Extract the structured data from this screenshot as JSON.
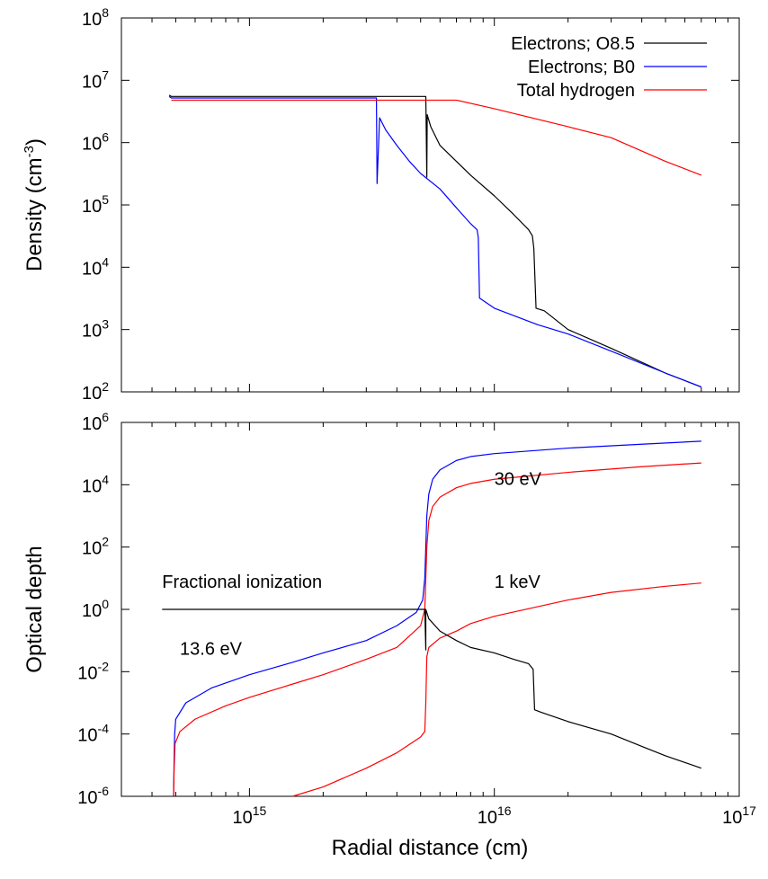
{
  "chart_data": [
    {
      "type": "line",
      "xlabel": "",
      "ylabel": "Density (cm",
      "ylabel_sup": "-3",
      "ylabel_suffix": ")",
      "xscale": "log",
      "yscale": "log",
      "xlim": [
        300000000000000.0,
        1e+17
      ],
      "ylim": [
        100,
        100000000
      ],
      "yticks": [
        {
          "exp": 2,
          "label": "10",
          "sup": "2"
        },
        {
          "exp": 3,
          "label": "10",
          "sup": "3"
        },
        {
          "exp": 4,
          "label": "10",
          "sup": "4"
        },
        {
          "exp": 5,
          "label": "10",
          "sup": "5"
        },
        {
          "exp": 6,
          "label": "10",
          "sup": "6"
        },
        {
          "exp": 7,
          "label": "10",
          "sup": "7"
        },
        {
          "exp": 8,
          "label": "10",
          "sup": "8"
        }
      ],
      "legend_position": "top-right",
      "series": [
        {
          "name": "Electrons; O8.5",
          "color": "#000000",
          "points": [
            [
              470000000000000.0,
              5800000.0
            ],
            [
              480000000000000.0,
              5500000.0
            ],
            [
              1000000000000000.0,
              5500000.0
            ],
            [
              3000000000000000.0,
              5500000.0
            ],
            [
              5250000000000000.0,
              5500000.0
            ],
            [
              5300000000000000.0,
              280000.0
            ],
            [
              5320000000000000.0,
              2800000.0
            ],
            [
              5500000000000000.0,
              1800000.0
            ],
            [
              6000000000000000.0,
              900000.0
            ],
            [
              7000000000000000.0,
              500000.0
            ],
            [
              8000000000000000.0,
              300000.0
            ],
            [
              1e+16,
              140000.0
            ],
            [
              1.2e+16,
              70000.0
            ],
            [
              1.38e+16,
              40000.0
            ],
            [
              1.43e+16,
              32000.0
            ],
            [
              1.45e+16,
              20000.0
            ],
            [
              1.48e+16,
              2200.0
            ],
            [
              1.6e+16,
              2000.0
            ],
            [
              2e+16,
              1000.0
            ],
            [
              3e+16,
              500
            ],
            [
              5e+16,
              200
            ],
            [
              7e+16,
              120
            ]
          ]
        },
        {
          "name": "Electrons; B0",
          "color": "#0000ff",
          "points": [
            [
              470000000000000.0,
              5500000.0
            ],
            [
              480000000000000.0,
              5200000.0
            ],
            [
              1000000000000000.0,
              5200000.0
            ],
            [
              2000000000000000.0,
              5200000.0
            ],
            [
              3300000000000000.0,
              5200000.0
            ],
            [
              3320000000000000.0,
              220000.0
            ],
            [
              3400000000000000.0,
              2500000.0
            ],
            [
              3600000000000000.0,
              1600000.0
            ],
            [
              4000000000000000.0,
              900000.0
            ],
            [
              4500000000000000.0,
              500000.0
            ],
            [
              5000000000000000.0,
              320000.0
            ],
            [
              6000000000000000.0,
              180000.0
            ],
            [
              7000000000000000.0,
              90000.0
            ],
            [
              8000000000000000.0,
              50000.0
            ],
            [
              8500000000000000.0,
              40000.0
            ],
            [
              8600000000000000.0,
              30000.0
            ],
            [
              8700000000000000.0,
              3200.0
            ],
            [
              1e+16,
              2200.0
            ],
            [
              1.5e+16,
              1200.0
            ],
            [
              2e+16,
              850
            ],
            [
              3e+16,
              450
            ],
            [
              5e+16,
              200
            ],
            [
              7e+16,
              120
            ]
          ]
        },
        {
          "name": "Total hydrogen",
          "color": "#ff0000",
          "points": [
            [
              480000000000000.0,
              4800000.0
            ],
            [
              1000000000000000.0,
              4800000.0
            ],
            [
              3000000000000000.0,
              4800000.0
            ],
            [
              5000000000000000.0,
              4800000.0
            ],
            [
              7000000000000000.0,
              4800000.0
            ],
            [
              1e+16,
              3500000.0
            ],
            [
              2e+16,
              1800000.0
            ],
            [
              3e+16,
              1200000.0
            ],
            [
              5e+16,
              500000.0
            ],
            [
              7e+16,
              300000.0
            ]
          ]
        }
      ]
    },
    {
      "type": "line",
      "xlabel": "Radial distance (cm)",
      "ylabel": "Optical depth",
      "xscale": "log",
      "yscale": "log",
      "xlim": [
        300000000000000.0,
        1e+17
      ],
      "ylim": [
        1e-06,
        1000000
      ],
      "xticks": [
        {
          "exp": 15,
          "label": "10",
          "sup": "15"
        },
        {
          "exp": 16,
          "label": "10",
          "sup": "16"
        },
        {
          "exp": 17,
          "label": "10",
          "sup": "17"
        }
      ],
      "yticks": [
        {
          "exp": -6,
          "label": "10",
          "sup": "-6"
        },
        {
          "exp": -4,
          "label": "10",
          "sup": "-4"
        },
        {
          "exp": -2,
          "label": "10",
          "sup": "-2"
        },
        {
          "exp": 0,
          "label": "10",
          "sup": "0"
        },
        {
          "exp": 2,
          "label": "10",
          "sup": "2"
        },
        {
          "exp": 4,
          "label": "10",
          "sup": "4"
        },
        {
          "exp": 6,
          "label": "10",
          "sup": "6"
        }
      ],
      "annotations": [
        {
          "text": "30 eV",
          "x": 1e+16,
          "y": 10000
        },
        {
          "text": "1 keV",
          "x": 1e+16,
          "y": 5
        },
        {
          "text": "Fractional ionization",
          "x": 440000000000000.0,
          "y": 5
        },
        {
          "text": "13.6 eV",
          "x": 520000000000000.0,
          "y": 0.035
        }
      ],
      "series": [
        {
          "color": "#0000ff",
          "points": [
            [
              490000000000000.0,
              1e-06
            ],
            [
              492000000000000.0,
              1e-05
            ],
            [
              495000000000000.0,
              0.0001
            ],
            [
              500000000000000.0,
              0.0003
            ],
            [
              550000000000000.0,
              0.001
            ],
            [
              700000000000000.0,
              0.003
            ],
            [
              1000000000000000.0,
              0.008
            ],
            [
              1500000000000000.0,
              0.02
            ],
            [
              2000000000000000.0,
              0.04
            ],
            [
              3000000000000000.0,
              0.1
            ],
            [
              4000000000000000.0,
              0.3
            ],
            [
              4800000000000000.0,
              0.8
            ],
            [
              5100000000000000.0,
              2
            ],
            [
              5200000000000000.0,
              10
            ],
            [
              5250000000000000.0,
              100
            ],
            [
              5300000000000000.0,
              1000
            ],
            [
              5400000000000000.0,
              5000
            ],
            [
              5600000000000000.0,
              15000
            ],
            [
              6000000000000000.0,
              30000
            ],
            [
              7000000000000000.0,
              60000
            ],
            [
              8000000000000000.0,
              80000
            ],
            [
              1e+16,
              100000
            ],
            [
              2e+16,
              150000
            ],
            [
              4e+16,
              200000
            ],
            [
              7e+16,
              250000
            ]
          ]
        },
        {
          "color": "#ff0000",
          "points": [
            [
              490000000000000.0,
              1e-06
            ],
            [
              493000000000000.0,
              1e-05
            ],
            [
              497000000000000.0,
              5e-05
            ],
            [
              520000000000000.0,
              0.00012
            ],
            [
              600000000000000.0,
              0.0003
            ],
            [
              800000000000000.0,
              0.0008
            ],
            [
              1000000000000000.0,
              0.0015
            ],
            [
              1500000000000000.0,
              0.004
            ],
            [
              2000000000000000.0,
              0.008
            ],
            [
              3000000000000000.0,
              0.025
            ],
            [
              4000000000000000.0,
              0.06
            ],
            [
              5000000000000000.0,
              0.3
            ],
            [
              5200000000000000.0,
              1
            ],
            [
              5250000000000000.0,
              10
            ],
            [
              5300000000000000.0,
              100
            ],
            [
              5400000000000000.0,
              700
            ],
            [
              5600000000000000.0,
              2000
            ],
            [
              6000000000000000.0,
              4000
            ],
            [
              7000000000000000.0,
              8000
            ],
            [
              8000000000000000.0,
              11000
            ],
            [
              1e+16,
              15000
            ],
            [
              2e+16,
              25000
            ],
            [
              4e+16,
              38000
            ],
            [
              7e+16,
              50000
            ]
          ]
        },
        {
          "color": "#ff0000",
          "points": [
            [
              1500000000000000.0,
              1e-06
            ],
            [
              2000000000000000.0,
              2e-06
            ],
            [
              3000000000000000.0,
              8e-06
            ],
            [
              4000000000000000.0,
              2.5e-05
            ],
            [
              5000000000000000.0,
              8e-05
            ],
            [
              5200000000000000.0,
              0.00012
            ],
            [
              5250000000000000.0,
              0.001
            ],
            [
              5300000000000000.0,
              0.03
            ],
            [
              5400000000000000.0,
              0.06
            ],
            [
              6000000000000000.0,
              0.12
            ],
            [
              7000000000000000.0,
              0.2
            ],
            [
              8000000000000000.0,
              0.35
            ],
            [
              1e+16,
              0.6
            ],
            [
              2e+16,
              2
            ],
            [
              3e+16,
              3.5
            ],
            [
              5e+16,
              5.5
            ],
            [
              7e+16,
              7
            ]
          ]
        },
        {
          "color": "#000000",
          "points": [
            [
              440000000000000.0,
              1
            ],
            [
              5000000000000000.0,
              1
            ],
            [
              5200000000000000.0,
              1
            ],
            [
              5250000000000000.0,
              0.05
            ],
            [
              5250000000000000.0,
              1
            ],
            [
              5400000000000000.0,
              0.5
            ],
            [
              6000000000000000.0,
              0.2
            ],
            [
              7000000000000000.0,
              0.1
            ],
            [
              8000000000000000.0,
              0.06
            ],
            [
              1e+16,
              0.04
            ],
            [
              1.2e+16,
              0.025
            ],
            [
              1.38e+16,
              0.018
            ],
            [
              1.44e+16,
              0.012
            ],
            [
              1.46e+16,
              0.0006
            ],
            [
              1.55e+16,
              0.0005
            ],
            [
              2e+16,
              0.00025
            ],
            [
              3e+16,
              0.0001
            ],
            [
              4e+16,
              4e-05
            ],
            [
              5e+16,
              2e-05
            ],
            [
              7e+16,
              8e-06
            ]
          ]
        }
      ]
    }
  ]
}
